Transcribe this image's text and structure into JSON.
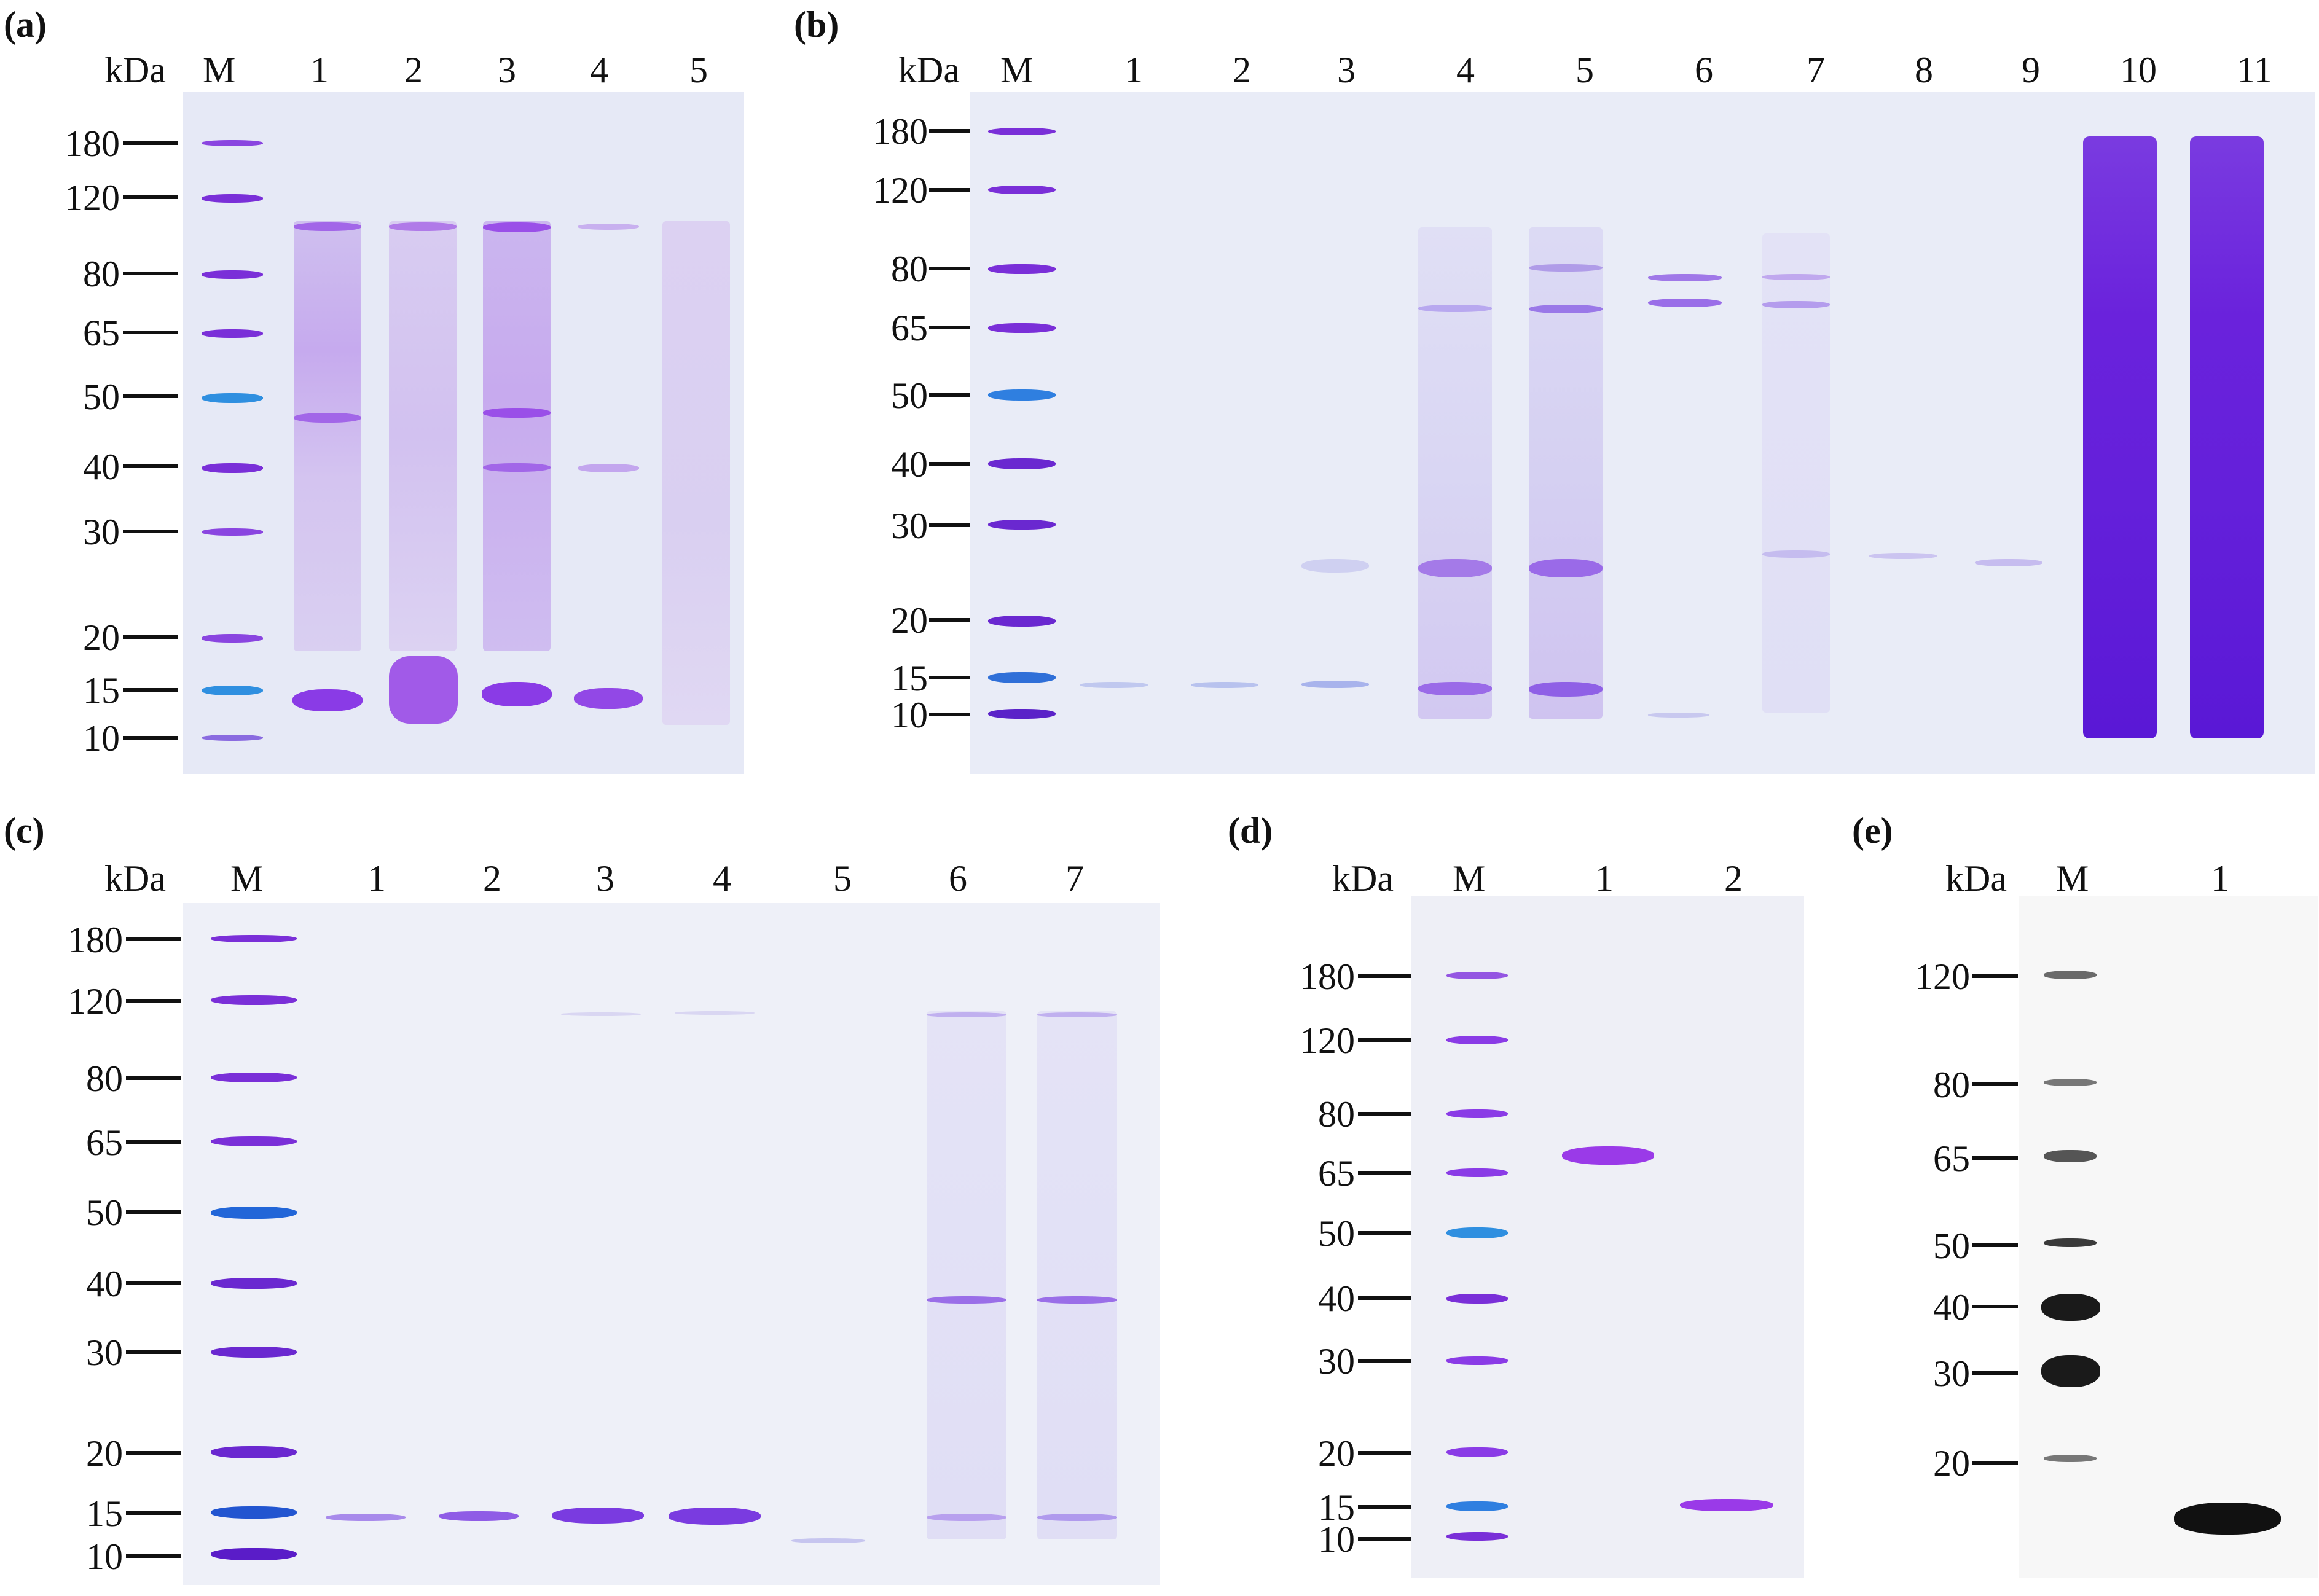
{
  "colors": {
    "gel_background": "#e6e9f6",
    "gel_background_western": "#f6f6f6",
    "marker_band_purple": "#7a2fd8",
    "marker_band_blue": "#2f6fd8",
    "protein_band": "#8a3be6",
    "western_band": "#1a1a1a"
  },
  "panels": {
    "a": {
      "label": "(a)",
      "unit": "kDa",
      "marker": "M",
      "lanes": [
        "1",
        "2",
        "3",
        "4",
        "5"
      ],
      "mw": [
        "180",
        "120",
        "80",
        "65",
        "50",
        "40",
        "30",
        "20",
        "15",
        "10"
      ]
    },
    "b": {
      "label": "(b)",
      "unit": "kDa",
      "marker": "M",
      "lanes": [
        "1",
        "2",
        "3",
        "4",
        "5",
        "6",
        "7",
        "8",
        "9",
        "10",
        "11"
      ],
      "mw": [
        "180",
        "120",
        "80",
        "65",
        "50",
        "40",
        "30",
        "20",
        "15",
        "10"
      ]
    },
    "c": {
      "label": "(c)",
      "unit": "kDa",
      "marker": "M",
      "lanes": [
        "1",
        "2",
        "3",
        "4",
        "5",
        "6",
        "7"
      ],
      "mw": [
        "180",
        "120",
        "80",
        "65",
        "50",
        "40",
        "30",
        "20",
        "15",
        "10"
      ]
    },
    "d": {
      "label": "(d)",
      "unit": "kDa",
      "marker": "M",
      "lanes": [
        "1",
        "2"
      ],
      "mw": [
        "180",
        "120",
        "80",
        "65",
        "50",
        "40",
        "30",
        "20",
        "15",
        "10"
      ]
    },
    "e": {
      "label": "(e)",
      "unit": "kDa",
      "marker": "M",
      "lanes": [
        "1"
      ],
      "mw": [
        "120",
        "80",
        "65",
        "50",
        "40",
        "30",
        "20"
      ]
    }
  }
}
